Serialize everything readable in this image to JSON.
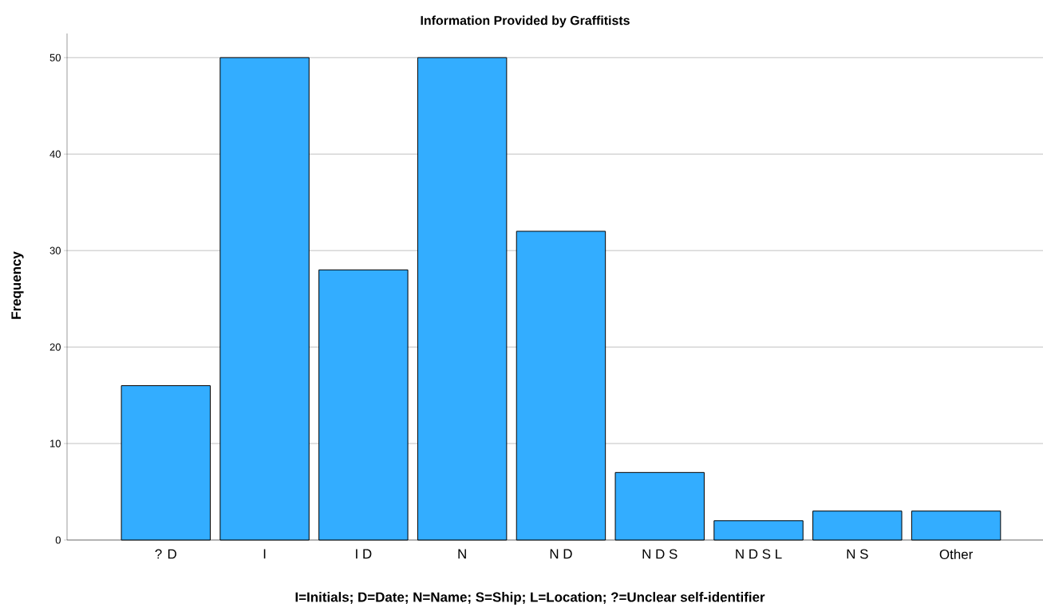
{
  "chart_data": {
    "type": "bar",
    "title": "Information Provided by Graffitists",
    "xlabel": "I=Initials; D=Date; N=Name; S=Ship; L=Location; ?=Unclear self-identifier",
    "ylabel": "Frequency",
    "categories": [
      "? D",
      "I",
      "I D",
      "N",
      "N D",
      "N D S",
      "N D S L",
      "N S",
      "Other"
    ],
    "values": [
      16,
      50,
      28,
      50,
      32,
      7,
      2,
      3,
      3
    ],
    "color": "#33adff",
    "ylim": [
      0,
      52.5
    ],
    "yticks": [
      0,
      10,
      20,
      30,
      40,
      50
    ],
    "grid": "y"
  }
}
